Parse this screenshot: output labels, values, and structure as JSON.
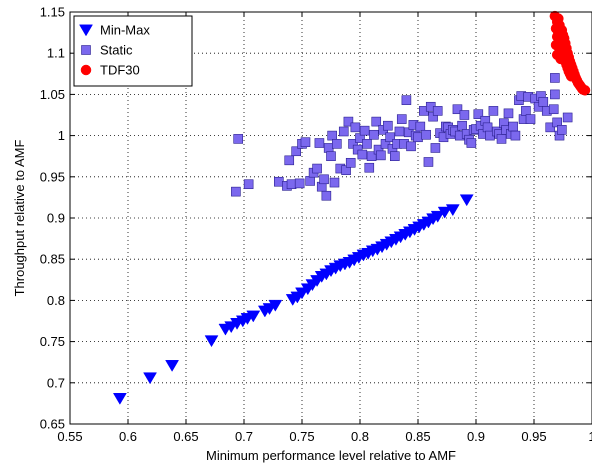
{
  "chart_data": {
    "type": "scatter",
    "xlabel": "Minimum performance level relative to AMF",
    "ylabel": "Throughput relative to AMF",
    "xlim": [
      0.55,
      1.0
    ],
    "ylim": [
      0.65,
      1.15
    ],
    "xticks": [
      0.55,
      0.6,
      0.65,
      0.7,
      0.75,
      0.8,
      0.85,
      0.9,
      0.95,
      1.0
    ],
    "xtick_labels": [
      "0.55",
      "0.6",
      "0.65",
      "0.7",
      "0.75",
      "0.8",
      "0.85",
      "0.9",
      "0.95",
      "1"
    ],
    "yticks": [
      0.65,
      0.7,
      0.75,
      0.8,
      0.85,
      0.9,
      0.95,
      1.0,
      1.05,
      1.1,
      1.15
    ],
    "ytick_labels": [
      "0.65",
      "0.7",
      "0.75",
      "0.8",
      "0.85",
      "0.9",
      "0.95",
      "1",
      "1.05",
      "1.1",
      "1.15"
    ],
    "grid": true,
    "legend_position": "top-left",
    "series": [
      {
        "name": "Min-Max",
        "marker": "triangle-down",
        "color": "#0000ff",
        "points": [
          [
            0.593,
            0.681
          ],
          [
            0.619,
            0.706
          ],
          [
            0.638,
            0.721
          ],
          [
            0.672,
            0.751
          ],
          [
            0.684,
            0.765
          ],
          [
            0.689,
            0.768
          ],
          [
            0.694,
            0.772
          ],
          [
            0.699,
            0.775
          ],
          [
            0.703,
            0.778
          ],
          [
            0.708,
            0.781
          ],
          [
            0.718,
            0.787
          ],
          [
            0.722,
            0.79
          ],
          [
            0.727,
            0.794
          ],
          [
            0.742,
            0.801
          ],
          [
            0.746,
            0.804
          ],
          [
            0.75,
            0.809
          ],
          [
            0.755,
            0.814
          ],
          [
            0.759,
            0.819
          ],
          [
            0.763,
            0.824
          ],
          [
            0.767,
            0.829
          ],
          [
            0.771,
            0.832
          ],
          [
            0.775,
            0.836
          ],
          [
            0.779,
            0.839
          ],
          [
            0.783,
            0.842
          ],
          [
            0.787,
            0.844
          ],
          [
            0.791,
            0.846
          ],
          [
            0.795,
            0.849
          ],
          [
            0.799,
            0.852
          ],
          [
            0.803,
            0.855
          ],
          [
            0.807,
            0.857
          ],
          [
            0.811,
            0.86
          ],
          [
            0.815,
            0.862
          ],
          [
            0.819,
            0.865
          ],
          [
            0.823,
            0.868
          ],
          [
            0.827,
            0.871
          ],
          [
            0.831,
            0.874
          ],
          [
            0.835,
            0.877
          ],
          [
            0.839,
            0.88
          ],
          [
            0.843,
            0.883
          ],
          [
            0.847,
            0.886
          ],
          [
            0.851,
            0.889
          ],
          [
            0.855,
            0.892
          ],
          [
            0.859,
            0.895
          ],
          [
            0.863,
            0.899
          ],
          [
            0.867,
            0.902
          ],
          [
            0.873,
            0.907
          ],
          [
            0.88,
            0.91
          ],
          [
            0.892,
            0.922
          ]
        ]
      },
      {
        "name": "Static",
        "marker": "square",
        "color": "#7b68ee",
        "points": [
          [
            0.693,
            0.932
          ],
          [
            0.695,
            0.996
          ],
          [
            0.704,
            0.941
          ],
          [
            0.73,
            0.944
          ],
          [
            0.737,
            0.939
          ],
          [
            0.739,
            0.97
          ],
          [
            0.741,
            0.941
          ],
          [
            0.745,
            0.981
          ],
          [
            0.748,
            0.942
          ],
          [
            0.75,
            0.99
          ],
          [
            0.753,
            0.992
          ],
          [
            0.757,
            0.945
          ],
          [
            0.76,
            0.955
          ],
          [
            0.763,
            0.96
          ],
          [
            0.765,
            0.991
          ],
          [
            0.767,
            0.938
          ],
          [
            0.769,
            0.947
          ],
          [
            0.771,
            0.927
          ],
          [
            0.773,
            0.985
          ],
          [
            0.775,
            0.975
          ],
          [
            0.776,
            1.0
          ],
          [
            0.778,
            0.943
          ],
          [
            0.78,
            0.99
          ],
          [
            0.783,
            0.96
          ],
          [
            0.786,
            1.005
          ],
          [
            0.788,
            0.958
          ],
          [
            0.79,
            1.017
          ],
          [
            0.792,
            0.967
          ],
          [
            0.794,
            0.99
          ],
          [
            0.796,
            1.01
          ],
          [
            0.798,
            0.983
          ],
          [
            0.8,
            0.997
          ],
          [
            0.802,
            0.977
          ],
          [
            0.804,
            1.006
          ],
          [
            0.806,
            0.99
          ],
          [
            0.808,
            0.961
          ],
          [
            0.81,
            0.975
          ],
          [
            0.812,
            1.001
          ],
          [
            0.814,
            1.017
          ],
          [
            0.816,
            0.983
          ],
          [
            0.818,
            0.976
          ],
          [
            0.82,
            1.007
          ],
          [
            0.822,
            0.99
          ],
          [
            0.824,
            1.012
          ],
          [
            0.826,
            0.998
          ],
          [
            0.828,
            0.984
          ],
          [
            0.83,
            0.975
          ],
          [
            0.832,
            0.99
          ],
          [
            0.834,
            1.005
          ],
          [
            0.836,
            1.02
          ],
          [
            0.838,
            0.99
          ],
          [
            0.84,
            1.043
          ],
          [
            0.842,
            1.004
          ],
          [
            0.844,
            0.987
          ],
          [
            0.846,
            1.013
          ],
          [
            0.848,
            1.0
          ],
          [
            0.85,
            0.998
          ],
          [
            0.852,
            1.011
          ],
          [
            0.855,
            1.03
          ],
          [
            0.857,
            1.001
          ],
          [
            0.859,
            0.968
          ],
          [
            0.861,
            1.035
          ],
          [
            0.863,
            1.023
          ],
          [
            0.865,
            0.985
          ],
          [
            0.867,
            1.03
          ],
          [
            0.869,
            1.003
          ],
          [
            0.872,
            0.998
          ],
          [
            0.874,
            1.011
          ],
          [
            0.876,
            1.01
          ],
          [
            0.878,
            1.002
          ],
          [
            0.88,
            1.007
          ],
          [
            0.882,
            1.005
          ],
          [
            0.884,
            1.032
          ],
          [
            0.886,
            1.0
          ],
          [
            0.888,
            1.012
          ],
          [
            0.89,
            1.025
          ],
          [
            0.892,
            1.002
          ],
          [
            0.894,
            0.995
          ],
          [
            0.896,
            0.991
          ],
          [
            0.898,
            1.007
          ],
          [
            0.9,
            1.008
          ],
          [
            0.902,
            1.026
          ],
          [
            0.904,
            1.012
          ],
          [
            0.906,
            1.002
          ],
          [
            0.908,
            1.018
          ],
          [
            0.91,
            1.01
          ],
          [
            0.912,
            1.0
          ],
          [
            0.915,
            1.03
          ],
          [
            0.918,
            1.005
          ],
          [
            0.92,
            1.002
          ],
          [
            0.922,
            0.996
          ],
          [
            0.924,
            1.015
          ],
          [
            0.926,
            1.007
          ],
          [
            0.928,
            1.027
          ],
          [
            0.93,
            1.002
          ],
          [
            0.932,
            1.011
          ],
          [
            0.934,
            1.0
          ],
          [
            0.937,
            1.043
          ],
          [
            0.939,
            1.048
          ],
          [
            0.941,
            1.02
          ],
          [
            0.943,
            1.03
          ],
          [
            0.945,
            1.047
          ],
          [
            0.947,
            1.02
          ],
          [
            0.951,
            1.045
          ],
          [
            0.954,
            1.035
          ],
          [
            0.956,
            1.048
          ],
          [
            0.958,
            1.041
          ],
          [
            0.961,
            1.03
          ],
          [
            0.964,
            1.01
          ],
          [
            0.967,
            1.032
          ],
          [
            0.968,
            1.05
          ],
          [
            0.968,
            1.07
          ],
          [
            0.97,
            1.016
          ],
          [
            0.972,
            1.0
          ],
          [
            0.974,
            1.007
          ],
          [
            0.979,
            1.022
          ]
        ]
      },
      {
        "name": "TDF30",
        "marker": "circle",
        "color": "#ff0000",
        "points": [
          [
            0.968,
            1.145
          ],
          [
            0.969,
            1.13
          ],
          [
            0.969,
            1.11
          ],
          [
            0.97,
            1.138
          ],
          [
            0.97,
            1.12
          ],
          [
            0.97,
            1.098
          ],
          [
            0.971,
            1.142
          ],
          [
            0.971,
            1.125
          ],
          [
            0.972,
            1.105
          ],
          [
            0.972,
            1.134
          ],
          [
            0.973,
            1.115
          ],
          [
            0.973,
            1.093
          ],
          [
            0.974,
            1.128
          ],
          [
            0.974,
            1.108
          ],
          [
            0.975,
            1.122
          ],
          [
            0.975,
            1.1
          ],
          [
            0.976,
            1.118
          ],
          [
            0.976,
            1.095
          ],
          [
            0.977,
            1.112
          ],
          [
            0.977,
            1.09
          ],
          [
            0.978,
            1.106
          ],
          [
            0.978,
            1.086
          ],
          [
            0.979,
            1.1
          ],
          [
            0.979,
            1.082
          ],
          [
            0.98,
            1.095
          ],
          [
            0.98,
            1.078
          ],
          [
            0.981,
            1.09
          ],
          [
            0.981,
            1.075
          ],
          [
            0.982,
            1.086
          ],
          [
            0.982,
            1.072
          ],
          [
            0.983,
            1.082
          ],
          [
            0.984,
            1.078
          ],
          [
            0.985,
            1.074
          ],
          [
            0.986,
            1.07
          ],
          [
            0.987,
            1.067
          ],
          [
            0.988,
            1.064
          ],
          [
            0.989,
            1.062
          ],
          [
            0.99,
            1.06
          ],
          [
            0.991,
            1.058
          ],
          [
            0.992,
            1.056
          ],
          [
            0.994,
            1.055
          ]
        ]
      }
    ]
  }
}
